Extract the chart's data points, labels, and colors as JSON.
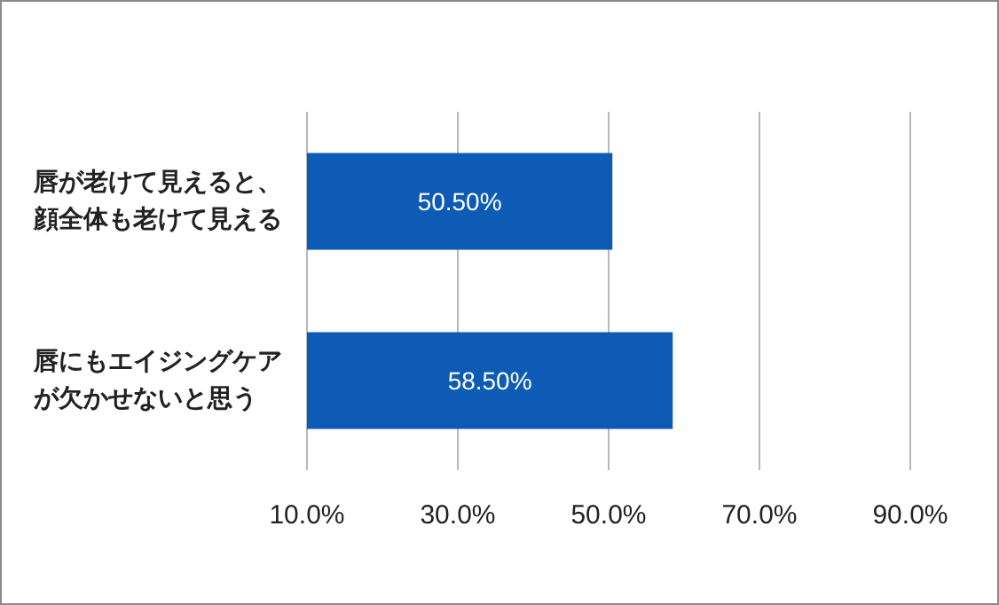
{
  "chart_data": {
    "type": "bar",
    "orientation": "horizontal",
    "categories": [
      "唇が老けて見えると、顔全体も老けて見える",
      "唇にもエイジングケアが欠かせないと思う"
    ],
    "values": [
      50.5,
      58.5
    ],
    "value_labels": [
      "50.50%",
      "58.50%"
    ],
    "color": "#0e5bb5",
    "xlim": [
      10,
      90
    ],
    "xticks": [
      {
        "value": 10,
        "label": "10.0%"
      },
      {
        "value": 30,
        "label": "30.0%"
      },
      {
        "value": 50,
        "label": "50.0%"
      },
      {
        "value": 70,
        "label": "70.0%"
      },
      {
        "value": 90,
        "label": "90.0%"
      }
    ],
    "grid": "x"
  }
}
